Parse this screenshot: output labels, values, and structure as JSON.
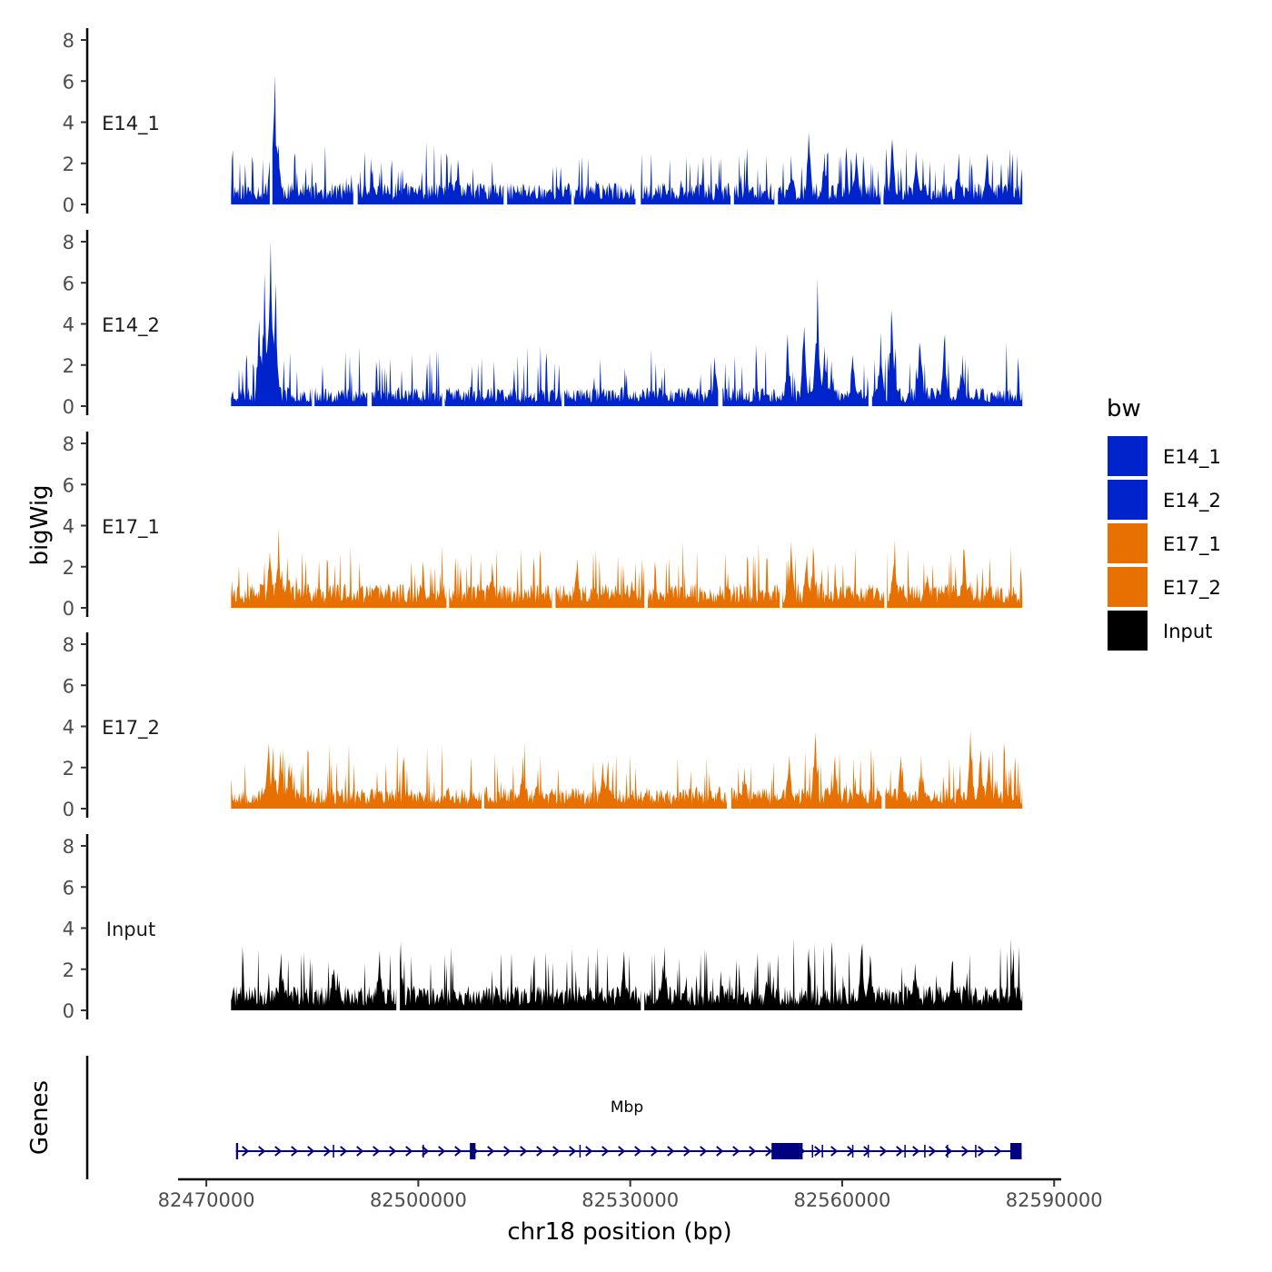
{
  "chart_data": {
    "type": "area",
    "title": "",
    "ylabel": "bigWig",
    "xlabel": "chr18 position (bp)",
    "ylim": [
      0,
      8
    ],
    "yticks": [
      "0",
      "2",
      "4",
      "6",
      "8"
    ],
    "xlim": [
      82466000,
      82591000
    ],
    "xticks": [
      {
        "value": 82470000,
        "label": "82470000"
      },
      {
        "value": 82500000,
        "label": "82500000"
      },
      {
        "value": 82530000,
        "label": "82530000"
      },
      {
        "value": 82560000,
        "label": "82560000"
      },
      {
        "value": 82590000,
        "label": "82590000"
      }
    ],
    "data_range": [
      82473500,
      82585500
    ],
    "legend": {
      "title": "bw",
      "position": "right",
      "entries": [
        {
          "label": "E14_1",
          "color": "#0024CC"
        },
        {
          "label": "E14_2",
          "color": "#0024CC"
        },
        {
          "label": "E17_1",
          "color": "#E87000"
        },
        {
          "label": "E17_2",
          "color": "#E87000"
        },
        {
          "label": "Input",
          "color": "#000000"
        }
      ]
    },
    "series": [
      {
        "name": "E14_1",
        "color": "#0024CC",
        "base": 0.8,
        "noise": 0.55,
        "seed": 11,
        "gaps": [
          [
            82479000,
            82479300
          ],
          [
            82490800,
            82491300
          ],
          [
            82512200,
            82512500
          ],
          [
            82521700,
            82522000
          ],
          [
            82530800,
            82531400
          ],
          [
            82544300,
            82544600
          ],
          [
            82550500,
            82550800
          ],
          [
            82565500,
            82565800
          ]
        ],
        "peaks": [
          [
            82479700,
            6.3
          ],
          [
            82479200,
            3.8
          ],
          [
            82480200,
            2.9
          ],
          [
            82505600,
            2.2
          ],
          [
            82493500,
            1.7
          ],
          [
            82555300,
            3.5
          ],
          [
            82552800,
            2.4
          ],
          [
            82557500,
            2.5
          ],
          [
            82562000,
            2.6
          ],
          [
            82567100,
            3.2
          ],
          [
            82570500,
            2.6
          ],
          [
            82576500,
            2.5
          ],
          [
            82580500,
            2.5
          ]
        ]
      },
      {
        "name": "E14_2",
        "color": "#0024CC",
        "base": 0.7,
        "noise": 0.6,
        "seed": 23,
        "gaps": [
          [
            82485000,
            82485300
          ],
          [
            82492900,
            82493300
          ],
          [
            82503400,
            82503700
          ],
          [
            82520300,
            82520600
          ],
          [
            82542500,
            82543000
          ],
          [
            82563800,
            82564100
          ]
        ],
        "peaks": [
          [
            82479100,
            8.1
          ],
          [
            82478200,
            6.5
          ],
          [
            82479800,
            6.0
          ],
          [
            82477500,
            4.2
          ],
          [
            82556500,
            6.2
          ],
          [
            82554600,
            3.9
          ],
          [
            82552300,
            3.5
          ],
          [
            82557500,
            2.9
          ],
          [
            82561500,
            2.5
          ],
          [
            82567000,
            4.7
          ],
          [
            82565500,
            3.6
          ],
          [
            82571000,
            4.0
          ],
          [
            82574500,
            3.5
          ],
          [
            82577000,
            2.5
          ],
          [
            82558500,
            2.2
          ],
          [
            82542000,
            2.4
          ]
        ]
      },
      {
        "name": "E17_1",
        "color": "#E87000",
        "base": 0.9,
        "noise": 0.6,
        "seed": 37,
        "gaps": [
          [
            82504000,
            82504300
          ],
          [
            82519000,
            82519300
          ],
          [
            82532100,
            82532400
          ],
          [
            82551200,
            82551500
          ],
          [
            82566000,
            82566300
          ]
        ],
        "peaks": [
          [
            82480200,
            3.9
          ],
          [
            82479000,
            2.7
          ],
          [
            82481500,
            2.5
          ],
          [
            82510500,
            2.2
          ],
          [
            82522500,
            2.4
          ],
          [
            82552800,
            3.2
          ],
          [
            82555000,
            2.6
          ],
          [
            82555900,
            3.0
          ],
          [
            82567400,
            3.3
          ],
          [
            82577300,
            2.8
          ],
          [
            82572000,
            2.0
          ]
        ]
      },
      {
        "name": "E17_2",
        "color": "#E87000",
        "base": 0.8,
        "noise": 0.6,
        "seed": 53,
        "gaps": [
          [
            82509000,
            82509300
          ],
          [
            82543800,
            82544200
          ],
          [
            82565700,
            82566000
          ]
        ],
        "peaks": [
          [
            82478800,
            3.2
          ],
          [
            82479500,
            3.0
          ],
          [
            82480500,
            2.8
          ],
          [
            82481700,
            2.2
          ],
          [
            82514800,
            2.6
          ],
          [
            82526100,
            2.3
          ],
          [
            82526800,
            1.9
          ],
          [
            82546200,
            2.0
          ],
          [
            82552500,
            2.6
          ],
          [
            82556200,
            3.7
          ],
          [
            82559000,
            2.6
          ],
          [
            82568300,
            2.6
          ],
          [
            82571200,
            2.6
          ],
          [
            82578200,
            3.8
          ],
          [
            82579600,
            2.9
          ],
          [
            82580800,
            2.6
          ]
        ]
      },
      {
        "name": "Input",
        "color": "#000000",
        "base": 0.9,
        "noise": 0.65,
        "seed": 71,
        "gaps": [
          [
            82497000,
            82497300
          ],
          [
            82531600,
            82531900
          ]
        ],
        "peaks": [
          [
            82480600,
            2.8
          ],
          [
            82488000,
            2.9
          ],
          [
            82494500,
            2.9
          ],
          [
            82497500,
            3.3
          ],
          [
            82529100,
            2.9
          ],
          [
            82534800,
            3.1
          ],
          [
            82549500,
            2.4
          ],
          [
            82562700,
            2.9
          ],
          [
            82564000,
            2.7
          ],
          [
            82570300,
            2.3
          ],
          [
            82575500,
            2.3
          ],
          [
            82584100,
            2.1
          ]
        ]
      }
    ],
    "genes": {
      "label": "Genes",
      "color": "#000080",
      "transcript": {
        "name": "Mbp",
        "start": 82474200,
        "end": 82585200,
        "strand": "+"
      },
      "exons": [
        [
          82474200,
          82474500
        ],
        [
          82487900,
          82488100
        ],
        [
          82500600,
          82500800
        ],
        [
          82507300,
          82508100
        ],
        [
          82522800,
          82522900
        ],
        [
          82550000,
          82551000
        ],
        [
          82551000,
          82554000
        ],
        [
          82554000,
          82554400
        ],
        [
          82555700,
          82555800
        ],
        [
          82557100,
          82557300
        ],
        [
          82561400,
          82561500
        ],
        [
          82563600,
          82563700
        ],
        [
          82568800,
          82568900
        ],
        [
          82571600,
          82571800
        ],
        [
          82574800,
          82574900
        ],
        [
          82578800,
          82579000
        ],
        [
          82583800,
          82585400
        ]
      ]
    }
  }
}
